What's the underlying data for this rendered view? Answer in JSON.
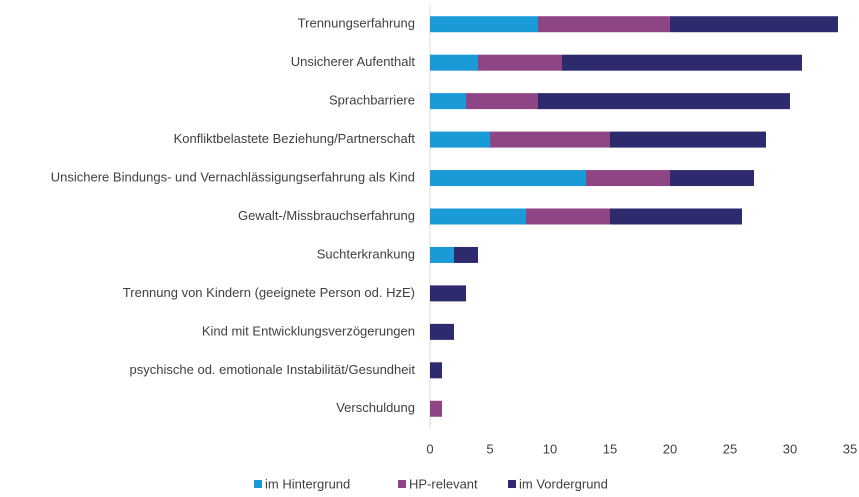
{
  "chart_data": {
    "type": "stacked-barh",
    "categories": [
      "Trennungserfahrung",
      "Unsicherer Aufenthalt",
      "Sprachbarriere",
      "Konfliktbelastete Beziehung/Partnerschaft",
      "Unsichere Bindungs- und Vernachlässigungserfahrung als Kind",
      "Gewalt-/Missbrauchserfahrung",
      "Suchterkrankung",
      "Trennung von Kindern (geeignete Person od. HzE)",
      "Kind mit Entwicklungsverzögerungen",
      "psychische od. emotionale Instabilität/Gesundheit",
      "Verschuldung"
    ],
    "series": [
      {
        "name": "im Hintergrund",
        "color": "#1a9bd7",
        "values": [
          9,
          4,
          3,
          5,
          13,
          8,
          2,
          0,
          0,
          0,
          0
        ]
      },
      {
        "name": "HP-relevant",
        "color": "#8e4585",
        "values": [
          11,
          7,
          6,
          10,
          7,
          7,
          0,
          0,
          0,
          0,
          1
        ]
      },
      {
        "name": "im Vordergrund",
        "color": "#2e2a6e",
        "values": [
          14,
          20,
          21,
          13,
          7,
          11,
          2,
          3,
          2,
          1,
          0
        ]
      }
    ],
    "xlim": [
      0,
      35
    ],
    "xticks": [
      0,
      5,
      10,
      15,
      20,
      25,
      30,
      35
    ],
    "grid": false,
    "legend": "bottom"
  }
}
